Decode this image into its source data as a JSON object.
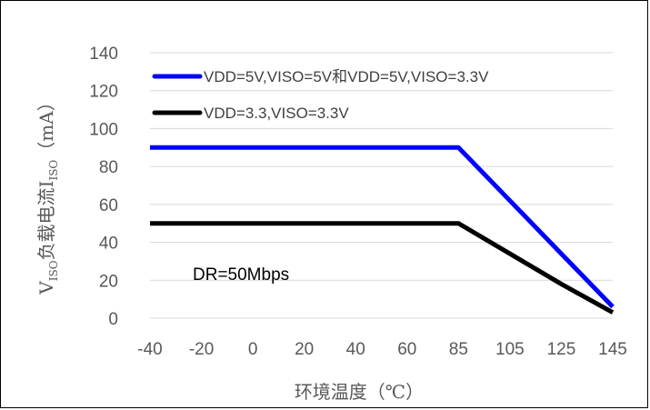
{
  "chart_data": {
    "type": "line",
    "title": "",
    "xlabel": "环境温度（℃）",
    "ylabel": {
      "prefix": "V",
      "prefix_sub": "ISO",
      "main": "负载电流I",
      "main_sub": "ISO",
      "suffix": "（mA）"
    },
    "categories": [
      "-40",
      "-20",
      "0",
      "20",
      "40",
      "60",
      "85",
      "105",
      "125",
      "145"
    ],
    "ylim": [
      0,
      140
    ],
    "yticks": [
      "0",
      "20",
      "40",
      "60",
      "80",
      "100",
      "120",
      "140"
    ],
    "grid": true,
    "legend_position": "top-left",
    "annotation": "DR=50Mbps",
    "series": [
      {
        "name": "VDD=5V,VISO=5V和VDD=5V,VISO=3.3V",
        "color": "#0000ff",
        "values": [
          90,
          90,
          90,
          90,
          90,
          90,
          90,
          62,
          34,
          6
        ]
      },
      {
        "name": "VDD=3.3,VISO=3.3V",
        "color": "#000000",
        "values": [
          50,
          50,
          50,
          50,
          50,
          50,
          50,
          34,
          18,
          3
        ]
      }
    ]
  }
}
